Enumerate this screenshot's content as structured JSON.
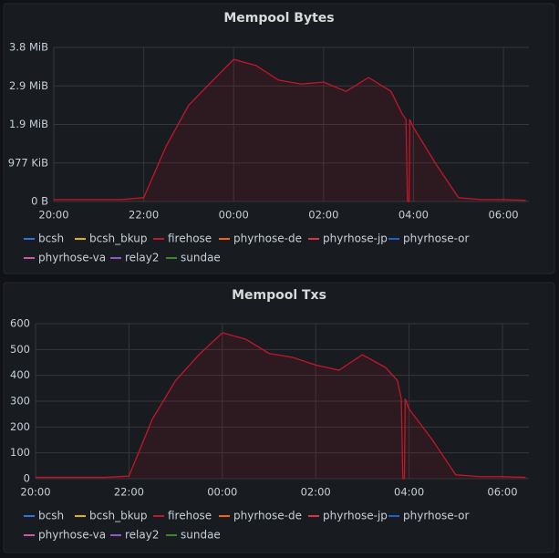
{
  "chart_data": [
    {
      "type": "line",
      "title": "Mempool Bytes",
      "x": [
        "20:00",
        "20:30",
        "21:00",
        "21:30",
        "22:00",
        "22:30",
        "23:00",
        "23:30",
        "00:00",
        "00:30",
        "01:00",
        "01:30",
        "02:00",
        "02:30",
        "03:00",
        "03:30",
        "03:45",
        "03:50",
        "03:52",
        "03:54",
        "03:55",
        "04:00",
        "04:30",
        "05:00",
        "05:30",
        "06:00",
        "06:30"
      ],
      "xlim": [
        "20:00",
        "06:34"
      ],
      "xticks": [
        "20:00",
        "22:00",
        "00:00",
        "02:00",
        "04:00",
        "06:00"
      ],
      "ylim": [
        0,
        4000000
      ],
      "yticks": [
        {
          "value": 0,
          "label": "0 B"
        },
        {
          "value": 1000000,
          "label": "977 KiB"
        },
        {
          "value": 2000000,
          "label": "1.9 MiB"
        },
        {
          "value": 3000000,
          "label": "2.9 MiB"
        },
        {
          "value": 4000000,
          "label": "3.8 MiB"
        }
      ],
      "grid": true,
      "fill": true,
      "legend": "bottom",
      "series": [
        {
          "name": "bcsh",
          "color": "#3274d9",
          "values": [
            null,
            null,
            null,
            null,
            null,
            null,
            null,
            null,
            null,
            null,
            null,
            null,
            null,
            null,
            null,
            null,
            null,
            null,
            null,
            null,
            null,
            null,
            null,
            null,
            null,
            null,
            null
          ]
        },
        {
          "name": "bcsh_bkup",
          "color": "#e0b400",
          "values": [
            null,
            null,
            null,
            null,
            null,
            null,
            null,
            null,
            null,
            null,
            null,
            null,
            null,
            null,
            null,
            null,
            null,
            null,
            null,
            null,
            null,
            null,
            null,
            null,
            null,
            null,
            null
          ]
        },
        {
          "name": "firehose",
          "color": "#c4162a",
          "values": [
            50000,
            50000,
            50000,
            50000,
            100000,
            1440000,
            2500000,
            3100000,
            3690000,
            3530000,
            3150000,
            3050000,
            3100000,
            2860000,
            3220000,
            2860000,
            2270000,
            2130000,
            0,
            0,
            2130000,
            1920000,
            970000,
            100000,
            50000,
            50000,
            30000
          ]
        },
        {
          "name": "phyrhose-de",
          "color": "#fa6400",
          "values": [
            null,
            null,
            null,
            null,
            null,
            null,
            null,
            null,
            null,
            null,
            null,
            null,
            null,
            null,
            null,
            null,
            null,
            null,
            null,
            null,
            null,
            null,
            null,
            null,
            null,
            null,
            null
          ]
        },
        {
          "name": "phyrhose-jp",
          "color": "#e02f44",
          "values": [
            null,
            null,
            null,
            null,
            null,
            null,
            null,
            null,
            null,
            null,
            null,
            null,
            null,
            null,
            null,
            null,
            null,
            null,
            null,
            null,
            null,
            null,
            null,
            null,
            null,
            null,
            null
          ]
        },
        {
          "name": "phyrhose-or",
          "color": "#1f60c4",
          "values": [
            null,
            null,
            null,
            null,
            null,
            null,
            null,
            null,
            null,
            null,
            null,
            null,
            null,
            null,
            null,
            null,
            null,
            null,
            null,
            null,
            null,
            null,
            null,
            null,
            null,
            null,
            null
          ]
        },
        {
          "name": "phyrhose-va",
          "color": "#c15ca8",
          "values": [
            null,
            null,
            null,
            null,
            null,
            null,
            null,
            null,
            null,
            null,
            null,
            null,
            null,
            null,
            null,
            null,
            null,
            null,
            null,
            null,
            null,
            null,
            null,
            null,
            null,
            null,
            null
          ]
        },
        {
          "name": "relay2",
          "color": "#8f5bb8",
          "values": [
            null,
            null,
            null,
            null,
            null,
            null,
            null,
            null,
            null,
            null,
            null,
            null,
            null,
            null,
            null,
            null,
            null,
            null,
            null,
            null,
            null,
            null,
            null,
            null,
            null,
            null,
            null
          ]
        },
        {
          "name": "sundae",
          "color": "#37872d",
          "values": [
            null,
            null,
            null,
            null,
            null,
            null,
            null,
            null,
            null,
            null,
            null,
            null,
            null,
            null,
            null,
            null,
            null,
            null,
            null,
            null,
            null,
            null,
            null,
            null,
            null,
            null,
            null
          ]
        }
      ]
    },
    {
      "type": "line",
      "title": "Mempool Txs",
      "x": [
        "20:00",
        "20:30",
        "21:00",
        "21:30",
        "22:00",
        "22:30",
        "23:00",
        "23:30",
        "00:00",
        "00:30",
        "01:00",
        "01:30",
        "02:00",
        "02:30",
        "03:00",
        "03:30",
        "03:45",
        "03:50",
        "03:52",
        "03:54",
        "03:55",
        "04:00",
        "04:30",
        "05:00",
        "05:30",
        "06:00",
        "06:30"
      ],
      "xlim": [
        "20:00",
        "06:34"
      ],
      "xticks": [
        "20:00",
        "22:00",
        "00:00",
        "02:00",
        "04:00",
        "06:00"
      ],
      "ylim": [
        0,
        600
      ],
      "yticks": [
        0,
        100,
        200,
        300,
        400,
        500,
        600
      ],
      "grid": true,
      "fill": true,
      "legend": "bottom",
      "series": [
        {
          "name": "bcsh",
          "color": "#3274d9",
          "values": [
            null,
            null,
            null,
            null,
            null,
            null,
            null,
            null,
            null,
            null,
            null,
            null,
            null,
            null,
            null,
            null,
            null,
            null,
            null,
            null,
            null,
            null,
            null,
            null,
            null,
            null,
            null
          ]
        },
        {
          "name": "bcsh_bkup",
          "color": "#e0b400",
          "values": [
            null,
            null,
            null,
            null,
            null,
            null,
            null,
            null,
            null,
            null,
            null,
            null,
            null,
            null,
            null,
            null,
            null,
            null,
            null,
            null,
            null,
            null,
            null,
            null,
            null,
            null,
            null
          ]
        },
        {
          "name": "firehose",
          "color": "#c4162a",
          "values": [
            5,
            5,
            5,
            5,
            10,
            230,
            380,
            480,
            565,
            540,
            485,
            470,
            440,
            420,
            480,
            430,
            380,
            310,
            0,
            0,
            310,
            270,
            150,
            15,
            8,
            8,
            5
          ]
        },
        {
          "name": "phyrhose-de",
          "color": "#fa6400",
          "values": [
            null,
            null,
            null,
            null,
            null,
            null,
            null,
            null,
            null,
            null,
            null,
            null,
            null,
            null,
            null,
            null,
            null,
            null,
            null,
            null,
            null,
            null,
            null,
            null,
            null,
            null,
            null
          ]
        },
        {
          "name": "phyrhose-jp",
          "color": "#e02f44",
          "values": [
            null,
            null,
            null,
            null,
            null,
            null,
            null,
            null,
            null,
            null,
            null,
            null,
            null,
            null,
            null,
            null,
            null,
            null,
            null,
            null,
            null,
            null,
            null,
            null,
            null,
            null,
            null
          ]
        },
        {
          "name": "phyrhose-or",
          "color": "#1f60c4",
          "values": [
            null,
            null,
            null,
            null,
            null,
            null,
            null,
            null,
            null,
            null,
            null,
            null,
            null,
            null,
            null,
            null,
            null,
            null,
            null,
            null,
            null,
            null,
            null,
            null,
            null,
            null,
            null
          ]
        },
        {
          "name": "phyrhose-va",
          "color": "#c15ca8",
          "values": [
            null,
            null,
            null,
            null,
            null,
            null,
            null,
            null,
            null,
            null,
            null,
            null,
            null,
            null,
            null,
            null,
            null,
            null,
            null,
            null,
            null,
            null,
            null,
            null,
            null,
            null,
            null
          ]
        },
        {
          "name": "relay2",
          "color": "#8f5bb8",
          "values": [
            null,
            null,
            null,
            null,
            null,
            null,
            null,
            null,
            null,
            null,
            null,
            null,
            null,
            null,
            null,
            null,
            null,
            null,
            null,
            null,
            null,
            null,
            null,
            null,
            null,
            null,
            null
          ]
        },
        {
          "name": "sundae",
          "color": "#37872d",
          "values": [
            null,
            null,
            null,
            null,
            null,
            null,
            null,
            null,
            null,
            null,
            null,
            null,
            null,
            null,
            null,
            null,
            null,
            null,
            null,
            null,
            null,
            null,
            null,
            null,
            null,
            null,
            null
          ]
        }
      ]
    }
  ]
}
